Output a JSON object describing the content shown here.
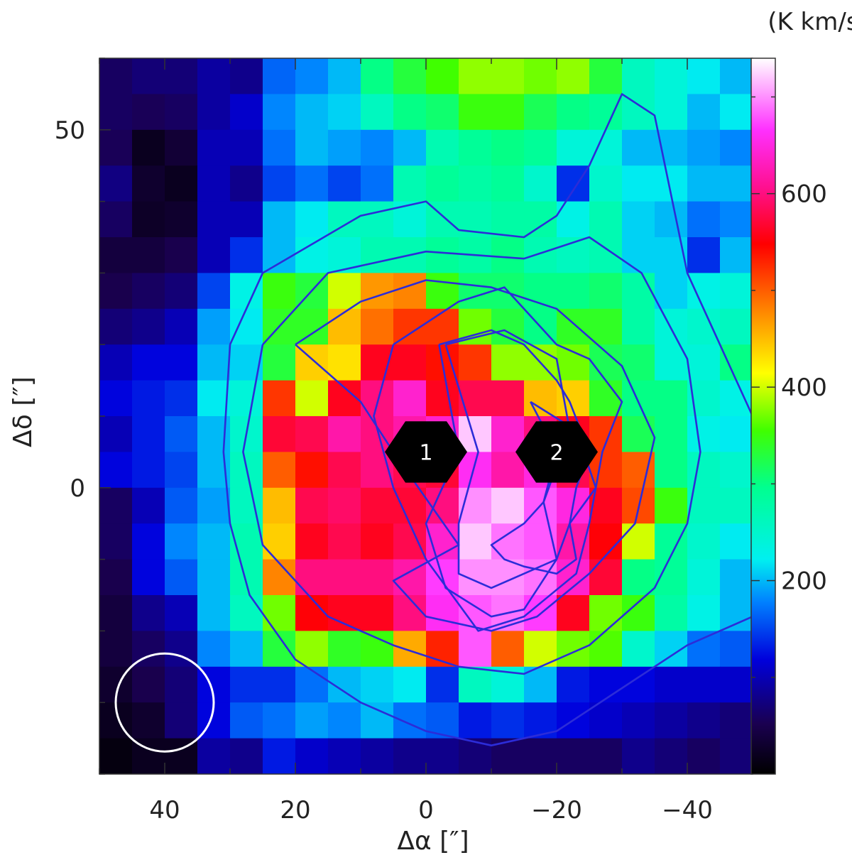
{
  "chart_data": {
    "type": "heatmap",
    "colorbar": {
      "unit": "(K km/s)",
      "range": [
        0,
        740
      ],
      "ticks": [
        200,
        400,
        600
      ],
      "colormap": [
        [
          0,
          "#000000"
        ],
        [
          0.07,
          "#1a0050"
        ],
        [
          0.16,
          "#0000dc"
        ],
        [
          0.24,
          "#0080ff"
        ],
        [
          0.3,
          "#00f0f0"
        ],
        [
          0.4,
          "#00ff90"
        ],
        [
          0.48,
          "#40ff00"
        ],
        [
          0.56,
          "#ffff00"
        ],
        [
          0.64,
          "#ff9000"
        ],
        [
          0.74,
          "#ff0000"
        ],
        [
          0.82,
          "#ff1090"
        ],
        [
          0.9,
          "#ff30ff"
        ],
        [
          1.0,
          "#ffffff"
        ]
      ]
    },
    "x_axis": {
      "label": "Δα [″]",
      "range": [
        50,
        -50
      ],
      "ticks": [
        40,
        20,
        0,
        -20,
        -40
      ],
      "tick_labels": [
        "40",
        "20",
        "0",
        "−20",
        "−40"
      ]
    },
    "y_axis": {
      "label": "Δδ [″]",
      "range": [
        -40,
        60
      ],
      "ticks": [
        50,
        0
      ],
      "tick_labels": [
        "50",
        "0"
      ]
    },
    "grid": {
      "x_centers": [
        47.5,
        42.5,
        37.5,
        32.5,
        27.5,
        22.5,
        17.5,
        12.5,
        7.5,
        2.5,
        -2.5,
        -7.5,
        -12.5,
        -17.5,
        -22.5,
        -27.5,
        -32.5,
        -37.5,
        -42.5,
        -47.5
      ],
      "y_centers": [
        57.5,
        52.5,
        47.5,
        42.5,
        37.5,
        32.5,
        27.5,
        22.5,
        17.5,
        12.5,
        7.5,
        2.5,
        -2.5,
        -7.5,
        -12.5,
        -17.5,
        -22.5,
        -27.5,
        -32.5,
        -37.5
      ],
      "values": [
        [
          60,
          70,
          70,
          90,
          80,
          165,
          180,
          200,
          300,
          330,
          355,
          380,
          380,
          370,
          380,
          330,
          260,
          240,
          220,
          200
        ],
        [
          60,
          55,
          60,
          90,
          110,
          180,
          200,
          210,
          260,
          300,
          310,
          350,
          350,
          320,
          300,
          290,
          260,
          240,
          200,
          220
        ],
        [
          55,
          20,
          35,
          100,
          100,
          170,
          200,
          190,
          180,
          200,
          270,
          290,
          300,
          290,
          240,
          240,
          200,
          200,
          190,
          180
        ],
        [
          75,
          30,
          20,
          100,
          80,
          150,
          170,
          150,
          170,
          270,
          290,
          280,
          290,
          250,
          140,
          250,
          220,
          220,
          200,
          200
        ],
        [
          60,
          25,
          30,
          100,
          100,
          200,
          220,
          260,
          260,
          240,
          270,
          270,
          280,
          280,
          230,
          270,
          210,
          200,
          170,
          180
        ],
        [
          40,
          40,
          50,
          100,
          140,
          200,
          230,
          240,
          270,
          270,
          290,
          280,
          300,
          270,
          260,
          270,
          210,
          210,
          140,
          200
        ],
        [
          50,
          60,
          70,
          150,
          230,
          350,
          330,
          400,
          470,
          480,
          350,
          310,
          310,
          300,
          300,
          310,
          280,
          210,
          230,
          240
        ],
        [
          70,
          80,
          100,
          190,
          220,
          340,
          340,
          450,
          490,
          520,
          520,
          370,
          330,
          300,
          340,
          340,
          280,
          240,
          250,
          260
        ],
        [
          100,
          120,
          120,
          200,
          210,
          330,
          440,
          430,
          560,
          560,
          540,
          520,
          380,
          380,
          370,
          320,
          310,
          240,
          240,
          300
        ],
        [
          120,
          130,
          140,
          220,
          240,
          520,
          400,
          560,
          600,
          640,
          560,
          580,
          580,
          450,
          440,
          340,
          300,
          300,
          250,
          230
        ],
        [
          100,
          130,
          160,
          200,
          250,
          570,
          580,
          620,
          600,
          620,
          640,
          720,
          640,
          600,
          560,
          520,
          320,
          300,
          230,
          220
        ],
        [
          120,
          130,
          150,
          200,
          260,
          500,
          540,
          580,
          600,
          580,
          570,
          660,
          620,
          650,
          580,
          520,
          500,
          300,
          260,
          250
        ],
        [
          60,
          100,
          160,
          190,
          260,
          450,
          580,
          590,
          570,
          570,
          600,
          700,
          720,
          680,
          650,
          560,
          510,
          350,
          260,
          260
        ],
        [
          60,
          120,
          180,
          200,
          270,
          440,
          560,
          580,
          560,
          580,
          640,
          720,
          690,
          680,
          620,
          550,
          400,
          290,
          250,
          220
        ],
        [
          50,
          120,
          160,
          200,
          270,
          480,
          600,
          600,
          600,
          620,
          670,
          700,
          700,
          690,
          640,
          570,
          300,
          290,
          240,
          200
        ],
        [
          40,
          80,
          100,
          200,
          260,
          370,
          550,
          560,
          560,
          600,
          660,
          680,
          690,
          670,
          560,
          370,
          350,
          280,
          230,
          200
        ],
        [
          40,
          60,
          80,
          180,
          200,
          330,
          380,
          340,
          350,
          460,
          530,
          680,
          500,
          400,
          370,
          360,
          250,
          210,
          170,
          160
        ],
        [
          30,
          50,
          70,
          120,
          140,
          140,
          170,
          200,
          210,
          220,
          140,
          260,
          240,
          200,
          130,
          120,
          120,
          110,
          110,
          110
        ],
        [
          20,
          30,
          70,
          120,
          160,
          170,
          190,
          180,
          200,
          170,
          160,
          130,
          140,
          130,
          120,
          110,
          100,
          90,
          80,
          70
        ],
        [
          10,
          20,
          20,
          90,
          80,
          130,
          110,
          100,
          90,
          80,
          80,
          70,
          60,
          60,
          60,
          60,
          80,
          70,
          60,
          70
        ]
      ]
    },
    "contours": [
      [
        [
          30,
          20
        ],
        [
          25,
          30
        ],
        [
          10,
          38
        ],
        [
          0,
          40
        ],
        [
          -5,
          36
        ],
        [
          -15,
          35
        ],
        [
          -20,
          38
        ],
        [
          -25,
          45
        ],
        [
          -30,
          55
        ],
        [
          -35,
          52
        ],
        [
          -40,
          30
        ],
        [
          -45,
          20
        ],
        [
          -50,
          10
        ],
        [
          -50,
          -18
        ],
        [
          -40,
          -22
        ],
        [
          -30,
          -28
        ],
        [
          -20,
          -34
        ],
        [
          -10,
          -36
        ],
        [
          0,
          -34
        ],
        [
          10,
          -30
        ],
        [
          20,
          -24
        ],
        [
          27,
          -15
        ],
        [
          30,
          -5
        ],
        [
          31,
          5
        ],
        [
          30,
          20
        ]
      ],
      [
        [
          25,
          20
        ],
        [
          15,
          30
        ],
        [
          0,
          33
        ],
        [
          -15,
          32
        ],
        [
          -25,
          35
        ],
        [
          -33,
          30
        ],
        [
          -40,
          18
        ],
        [
          -42,
          5
        ],
        [
          -40,
          -5
        ],
        [
          -35,
          -14
        ],
        [
          -25,
          -22
        ],
        [
          -15,
          -26
        ],
        [
          -5,
          -25
        ],
        [
          5,
          -22
        ],
        [
          15,
          -18
        ],
        [
          25,
          -8
        ],
        [
          28,
          5
        ],
        [
          25,
          20
        ]
      ],
      [
        [
          20,
          20
        ],
        [
          10,
          26
        ],
        [
          0,
          29
        ],
        [
          -10,
          28
        ],
        [
          -20,
          25
        ],
        [
          -30,
          17
        ],
        [
          -35,
          7
        ],
        [
          -32,
          -5
        ],
        [
          -25,
          -12
        ],
        [
          -17,
          -18
        ],
        [
          -10,
          -20
        ],
        [
          0,
          -18
        ],
        [
          5,
          -13
        ],
        [
          -5,
          -8
        ],
        [
          5,
          5
        ],
        [
          10,
          12
        ],
        [
          20,
          20
        ]
      ],
      [
        [
          5,
          20
        ],
        [
          -5,
          26
        ],
        [
          -12,
          28
        ],
        [
          -20,
          20
        ],
        [
          -25,
          18
        ],
        [
          -30,
          12
        ],
        [
          -27,
          5
        ],
        [
          -25,
          -5
        ],
        [
          -23,
          -12
        ],
        [
          -15,
          -18
        ],
        [
          -8,
          -20
        ],
        [
          0,
          -10
        ],
        [
          5,
          0
        ],
        [
          8,
          10
        ],
        [
          5,
          20
        ]
      ],
      [
        [
          -2,
          20
        ],
        [
          -10,
          22
        ],
        [
          -15,
          20
        ],
        [
          -20,
          15
        ],
        [
          -22,
          12
        ],
        [
          -25,
          5
        ],
        [
          -23,
          0
        ],
        [
          -22,
          -5
        ],
        [
          -20,
          -10
        ],
        [
          -15,
          -17
        ],
        [
          -10,
          -18
        ],
        [
          -3,
          -14
        ],
        [
          0,
          -5
        ],
        [
          -5,
          5
        ],
        [
          -2,
          20
        ]
      ],
      [
        [
          -3,
          20
        ],
        [
          -12,
          22
        ],
        [
          -20,
          18
        ],
        [
          -22,
          8
        ],
        [
          -18,
          -2
        ],
        [
          -20,
          -10
        ],
        [
          -15,
          -12
        ],
        [
          -10,
          -14
        ],
        [
          -5,
          -12
        ],
        [
          -5,
          -5
        ],
        [
          -8,
          5
        ],
        [
          -3,
          20
        ]
      ],
      [
        [
          -16,
          12
        ],
        [
          -23,
          8
        ],
        [
          -26,
          0
        ],
        [
          -22,
          -5
        ],
        [
          -23,
          -10
        ],
        [
          -20,
          -12
        ],
        [
          -15,
          -11
        ],
        [
          -12,
          -10
        ],
        [
          -10,
          -8
        ],
        [
          -15,
          -5
        ],
        [
          -18,
          -2
        ],
        [
          -20,
          5
        ],
        [
          -16,
          12
        ]
      ]
    ],
    "markers": [
      {
        "label": "1",
        "x": 0,
        "y": 5
      },
      {
        "label": "2",
        "x": -20,
        "y": 5
      }
    ],
    "beam": {
      "x": 40,
      "y": -30,
      "diameter": 15
    }
  }
}
